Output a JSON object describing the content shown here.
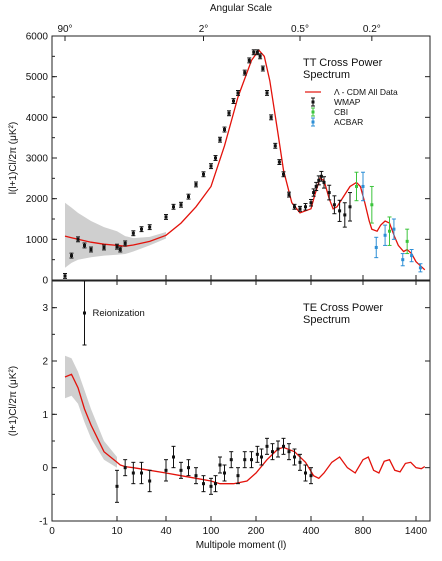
{
  "colors": {
    "model": "#e3120b",
    "band": "#cfcfcf",
    "wmap": "#111111",
    "cbi": "#3cc43c",
    "acbar": "#2d8fd6",
    "axis": "#222222"
  },
  "top_axis": {
    "title": "Angular Scale",
    "ticks": [
      {
        "label": "90°",
        "at_l": 2
      },
      {
        "label": "2°",
        "at_l": 90
      },
      {
        "label": "0.5°",
        "at_l": 360
      },
      {
        "label": "0.2°",
        "at_l": 900
      }
    ]
  },
  "x_axis": {
    "label": "Multipole moment (l)",
    "scale": "mixed log (l<200) / linear (l>=200)",
    "ticks": [
      {
        "label": "0",
        "value": 0
      },
      {
        "label": "10",
        "value": 10
      },
      {
        "label": "40",
        "value": 40
      },
      {
        "label": "100",
        "value": 100
      },
      {
        "label": "200",
        "value": 200
      },
      {
        "label": "400",
        "value": 400
      },
      {
        "label": "800",
        "value": 800
      },
      {
        "label": "1400",
        "value": 1400
      }
    ]
  },
  "chart_data": [
    {
      "type": "line",
      "title": "TT Cross Power\nSpectrum",
      "ylabel": "l(l+1)Cl/2π (μK²)",
      "ylim": [
        0,
        6000
      ],
      "yticks": [
        {
          "label": "0",
          "value": 0
        },
        {
          "label": "1000",
          "value": 1000
        },
        {
          "label": "2000",
          "value": 2000
        },
        {
          "label": "3000",
          "value": 3000
        },
        {
          "label": "4000",
          "value": 4000
        },
        {
          "label": "5000",
          "value": 5000
        },
        {
          "label": "6000",
          "value": 6000
        }
      ],
      "legend": {
        "placement": "right",
        "entries": [
          {
            "label": "Λ - CDM All Data",
            "kind": "line",
            "color": "#e3120b"
          },
          {
            "label": "WMAP",
            "kind": "errorbar",
            "color": "#111111"
          },
          {
            "label": "CBI",
            "kind": "errorbar",
            "color": "#3cc43c"
          },
          {
            "label": "ACBAR",
            "kind": "errorbar",
            "color": "#2d8fd6"
          }
        ]
      },
      "model": {
        "name": "Λ - CDM All Data",
        "x": [
          2,
          3,
          4,
          6,
          8,
          10,
          15,
          20,
          30,
          40,
          60,
          80,
          100,
          130,
          160,
          190,
          210,
          230,
          250,
          280,
          300,
          330,
          360,
          400,
          430,
          470,
          500,
          540,
          570,
          600,
          650,
          700,
          750,
          780,
          820,
          870,
          900,
          960,
          1000,
          1050,
          1100,
          1160,
          1200,
          1260,
          1300,
          1350,
          1400,
          1500
        ],
        "y": [
          1080,
          1040,
          1000,
          930,
          880,
          850,
          830,
          860,
          950,
          1100,
          1400,
          1800,
          2300,
          3300,
          4500,
          5400,
          5650,
          5500,
          4900,
          3600,
          2700,
          1900,
          1650,
          1750,
          2100,
          2500,
          2450,
          2000,
          1750,
          1800,
          2050,
          2300,
          2400,
          2300,
          1900,
          1450,
          1250,
          1200,
          1350,
          1450,
          1400,
          1050,
          850,
          700,
          750,
          650,
          450,
          250
        ]
      },
      "band": {
        "x": [
          2,
          3,
          4,
          6,
          8,
          10,
          15,
          20,
          30,
          40
        ],
        "upper": [
          1900,
          1780,
          1650,
          1450,
          1300,
          1200,
          1080,
          1030,
          1060,
          1180
        ],
        "lower": [
          300,
          420,
          500,
          560,
          600,
          620,
          640,
          700,
          850,
          1020
        ]
      },
      "series": [
        {
          "name": "WMAP",
          "color": "#111111",
          "x": [
            2,
            3,
            4,
            5,
            6,
            8,
            10,
            12,
            15,
            20,
            25,
            30,
            40,
            50,
            60,
            70,
            80,
            90,
            100,
            110,
            120,
            130,
            140,
            150,
            160,
            175,
            185,
            195,
            205,
            215,
            225,
            240,
            255,
            270,
            285,
            300,
            320,
            340,
            360,
            380,
            400,
            420,
            440,
            460,
            480,
            500,
            540,
            580,
            620,
            660,
            700
          ],
          "y": [
            100,
            600,
            1000,
            850,
            750,
            800,
            820,
            750,
            900,
            1150,
            1250,
            1300,
            1550,
            1800,
            1850,
            2050,
            2350,
            2600,
            2800,
            3000,
            3450,
            3700,
            4100,
            4400,
            4600,
            5100,
            5400,
            5600,
            5600,
            5500,
            5200,
            4600,
            4000,
            3300,
            2900,
            2600,
            2100,
            1800,
            1750,
            1800,
            1900,
            2150,
            2300,
            2450,
            2550,
            2400,
            2150,
            1850,
            1700,
            1600,
            1800
          ],
          "err": [
            60,
            60,
            60,
            60,
            60,
            60,
            60,
            60,
            60,
            60,
            60,
            60,
            60,
            60,
            60,
            60,
            60,
            60,
            60,
            60,
            60,
            60,
            60,
            60,
            60,
            60,
            60,
            60,
            60,
            60,
            60,
            60,
            60,
            60,
            60,
            60,
            60,
            60,
            60,
            80,
            80,
            90,
            100,
            110,
            120,
            140,
            180,
            220,
            260,
            300,
            350
          ]
        },
        {
          "name": "CBI",
          "color": "#3cc43c",
          "x": [
            750,
            900,
            1100,
            1300
          ],
          "y": [
            2300,
            1850,
            1200,
            950
          ],
          "err": [
            350,
            450,
            350,
            300
          ]
        },
        {
          "name": "ACBAR",
          "color": "#2d8fd6",
          "x": [
            800,
            950,
            1050,
            1150,
            1250,
            1350,
            1450
          ],
          "y": [
            2300,
            800,
            1100,
            1250,
            500,
            600,
            300
          ],
          "err": [
            350,
            250,
            250,
            250,
            150,
            150,
            100
          ]
        }
      ]
    },
    {
      "type": "line",
      "title": "TE Cross Power\nSpectrum",
      "ylabel": "(l+1)Cl/2π (μK²)",
      "ylim": [
        -1,
        3.5
      ],
      "yticks": [
        {
          "label": "-1",
          "value": -1
        },
        {
          "label": "0",
          "value": 0
        },
        {
          "label": "1",
          "value": 1
        },
        {
          "label": "2",
          "value": 2
        },
        {
          "label": "3",
          "value": 3
        }
      ],
      "annotation": {
        "text": "Reionization",
        "x": 5,
        "y": 2.9
      },
      "model": {
        "x": [
          2,
          3,
          4,
          5,
          6,
          7,
          8,
          10,
          12,
          15,
          20,
          30,
          40,
          60,
          80,
          100,
          120,
          150,
          180,
          200,
          240,
          280,
          300,
          340,
          380,
          420,
          460,
          500,
          560,
          620,
          680,
          740,
          800,
          860,
          920,
          980,
          1040,
          1100,
          1160,
          1220,
          1280,
          1340,
          1400,
          1460,
          1500
        ],
        "y": [
          1.7,
          1.75,
          1.5,
          1.1,
          0.8,
          0.55,
          0.3,
          0.1,
          0.05,
          0.02,
          0.0,
          -0.05,
          -0.1,
          -0.15,
          -0.2,
          -0.25,
          -0.3,
          -0.3,
          -0.25,
          -0.1,
          0.15,
          0.35,
          0.38,
          0.3,
          0.1,
          -0.15,
          -0.2,
          -0.1,
          0.1,
          0.2,
          0.0,
          -0.1,
          0.15,
          0.2,
          -0.05,
          -0.1,
          0.12,
          0.15,
          -0.05,
          -0.08,
          0.08,
          0.1,
          0.0,
          -0.02,
          0.02
        ]
      },
      "band": {
        "x": [
          2,
          3,
          4,
          5,
          6,
          7,
          8,
          10
        ],
        "upper": [
          2.1,
          2.05,
          1.8,
          1.45,
          1.1,
          0.8,
          0.5,
          0.2
        ],
        "lower": [
          1.3,
          1.35,
          1.2,
          0.85,
          0.55,
          0.35,
          0.15,
          0.0
        ]
      },
      "series": [
        {
          "name": "WMAP",
          "color": "#111111",
          "x": [
            5,
            10,
            15,
            20,
            25,
            30,
            40,
            50,
            60,
            70,
            80,
            90,
            100,
            110,
            120,
            130,
            145,
            160,
            175,
            190,
            205,
            220,
            240,
            260,
            280,
            300,
            320,
            340,
            360,
            380,
            400
          ],
          "y": [
            2.9,
            -0.35,
            0.0,
            -0.1,
            -0.1,
            -0.25,
            -0.05,
            0.2,
            -0.05,
            0.0,
            -0.15,
            -0.3,
            -0.35,
            -0.3,
            0.05,
            -0.1,
            0.15,
            -0.15,
            0.15,
            0.15,
            0.25,
            0.2,
            0.4,
            0.3,
            0.35,
            0.4,
            0.3,
            0.2,
            0.1,
            -0.1,
            -0.15
          ],
          "err": [
            0.6,
            0.3,
            0.15,
            0.2,
            0.2,
            0.2,
            0.2,
            0.2,
            0.15,
            0.15,
            0.15,
            0.15,
            0.15,
            0.15,
            0.15,
            0.15,
            0.15,
            0.15,
            0.15,
            0.15,
            0.15,
            0.15,
            0.15,
            0.15,
            0.15,
            0.15,
            0.15,
            0.15,
            0.15,
            0.15,
            0.15
          ]
        }
      ]
    }
  ]
}
